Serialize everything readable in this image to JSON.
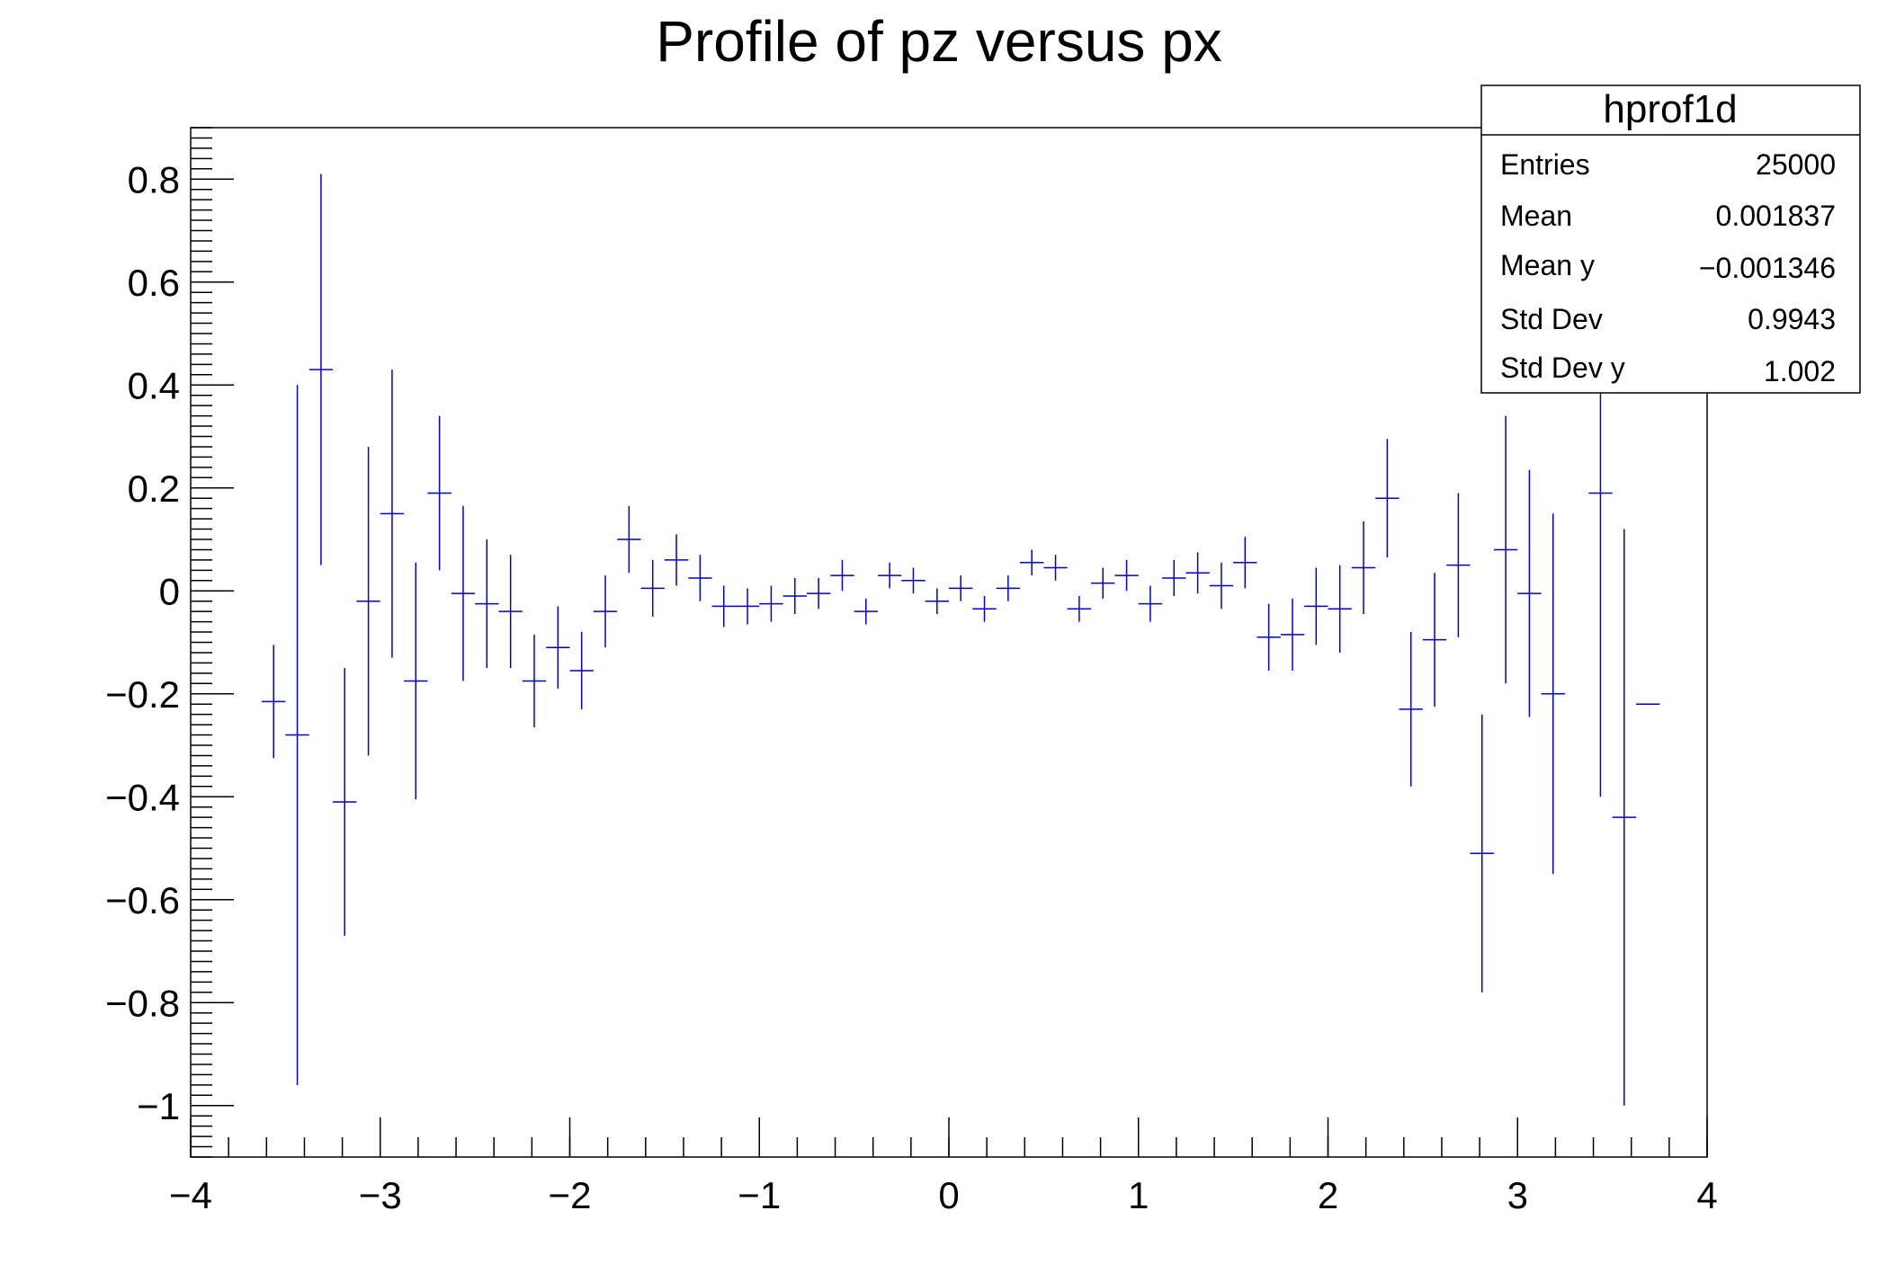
{
  "chart_data": {
    "type": "scatter",
    "title": "Profile of pz versus px",
    "xlabel": "",
    "ylabel": "",
    "xlim": [
      -4,
      4
    ],
    "ylim": [
      -1.1,
      0.9
    ],
    "x_ticks": [
      -4,
      -3,
      -2,
      -1,
      0,
      1,
      2,
      3,
      4
    ],
    "x_tick_labels": [
      "−4",
      "−3",
      "−2",
      "−1",
      "0",
      "1",
      "2",
      "3",
      "4"
    ],
    "y_ticks": [
      -1,
      -0.8,
      -0.6,
      -0.4,
      -0.2,
      0,
      0.2,
      0.4,
      0.6,
      0.8
    ],
    "y_tick_labels": [
      "−1",
      "−0.8",
      "−0.6",
      "−0.4",
      "−0.2",
      "0",
      "0.2",
      "0.4",
      "0.6",
      "0.8"
    ],
    "grid": false,
    "bin_width": 0.125,
    "series_color": "#0000cc",
    "points": [
      {
        "x": -3.5625,
        "y": -0.215,
        "err": 0.11
      },
      {
        "x": -3.4375,
        "y": -0.28,
        "err": 0.68
      },
      {
        "x": -3.3125,
        "y": 0.43,
        "err": 0.38
      },
      {
        "x": -3.1875,
        "y": -0.41,
        "err": 0.26
      },
      {
        "x": -3.0625,
        "y": -0.02,
        "err": 0.3
      },
      {
        "x": -2.9375,
        "y": 0.15,
        "err": 0.28
      },
      {
        "x": -2.8125,
        "y": -0.175,
        "err": 0.23
      },
      {
        "x": -2.6875,
        "y": 0.19,
        "err": 0.15
      },
      {
        "x": -2.5625,
        "y": -0.005,
        "err": 0.17
      },
      {
        "x": -2.4375,
        "y": -0.025,
        "err": 0.125
      },
      {
        "x": -2.3125,
        "y": -0.04,
        "err": 0.11
      },
      {
        "x": -2.1875,
        "y": -0.175,
        "err": 0.09
      },
      {
        "x": -2.0625,
        "y": -0.11,
        "err": 0.08
      },
      {
        "x": -1.9375,
        "y": -0.155,
        "err": 0.075
      },
      {
        "x": -1.8125,
        "y": -0.04,
        "err": 0.07
      },
      {
        "x": -1.6875,
        "y": 0.1,
        "err": 0.065
      },
      {
        "x": -1.5625,
        "y": 0.005,
        "err": 0.055
      },
      {
        "x": -1.4375,
        "y": 0.06,
        "err": 0.05
      },
      {
        "x": -1.3125,
        "y": 0.025,
        "err": 0.045
      },
      {
        "x": -1.1875,
        "y": -0.03,
        "err": 0.04
      },
      {
        "x": -1.0625,
        "y": -0.03,
        "err": 0.035
      },
      {
        "x": -0.9375,
        "y": -0.025,
        "err": 0.035
      },
      {
        "x": -0.8125,
        "y": -0.01,
        "err": 0.035
      },
      {
        "x": -0.6875,
        "y": -0.005,
        "err": 0.03
      },
      {
        "x": -0.5625,
        "y": 0.03,
        "err": 0.03
      },
      {
        "x": -0.4375,
        "y": -0.04,
        "err": 0.025
      },
      {
        "x": -0.3125,
        "y": 0.03,
        "err": 0.025
      },
      {
        "x": -0.1875,
        "y": 0.02,
        "err": 0.025
      },
      {
        "x": -0.0625,
        "y": -0.02,
        "err": 0.025
      },
      {
        "x": 0.0625,
        "y": 0.005,
        "err": 0.025
      },
      {
        "x": 0.1875,
        "y": -0.035,
        "err": 0.025
      },
      {
        "x": 0.3125,
        "y": 0.005,
        "err": 0.025
      },
      {
        "x": 0.4375,
        "y": 0.055,
        "err": 0.025
      },
      {
        "x": 0.5625,
        "y": 0.045,
        "err": 0.025
      },
      {
        "x": 0.6875,
        "y": -0.035,
        "err": 0.025
      },
      {
        "x": 0.8125,
        "y": 0.015,
        "err": 0.03
      },
      {
        "x": 0.9375,
        "y": 0.03,
        "err": 0.03
      },
      {
        "x": 1.0625,
        "y": -0.025,
        "err": 0.035
      },
      {
        "x": 1.1875,
        "y": 0.025,
        "err": 0.035
      },
      {
        "x": 1.3125,
        "y": 0.035,
        "err": 0.04
      },
      {
        "x": 1.4375,
        "y": 0.01,
        "err": 0.045
      },
      {
        "x": 1.5625,
        "y": 0.055,
        "err": 0.05
      },
      {
        "x": 1.6875,
        "y": -0.09,
        "err": 0.065
      },
      {
        "x": 1.8125,
        "y": -0.085,
        "err": 0.07
      },
      {
        "x": 1.9375,
        "y": -0.03,
        "err": 0.075
      },
      {
        "x": 2.0625,
        "y": -0.035,
        "err": 0.085
      },
      {
        "x": 2.1875,
        "y": 0.045,
        "err": 0.09
      },
      {
        "x": 2.3125,
        "y": 0.18,
        "err": 0.115
      },
      {
        "x": 2.4375,
        "y": -0.23,
        "err": 0.15
      },
      {
        "x": 2.5625,
        "y": -0.095,
        "err": 0.13
      },
      {
        "x": 2.6875,
        "y": 0.05,
        "err": 0.14
      },
      {
        "x": 2.8125,
        "y": -0.51,
        "err": 0.27
      },
      {
        "x": 2.9375,
        "y": 0.08,
        "err": 0.26
      },
      {
        "x": 3.0625,
        "y": -0.005,
        "err": 0.24
      },
      {
        "x": 3.1875,
        "y": -0.2,
        "err": 0.35
      },
      {
        "x": 3.4375,
        "y": 0.19,
        "err": 0.59
      },
      {
        "x": 3.5625,
        "y": -0.44,
        "err": 0.56
      },
      {
        "x": 3.6875,
        "y": -0.22,
        "err": 0
      }
    ]
  },
  "stats_box": {
    "title": "hprof1d",
    "rows": [
      {
        "label": "Entries",
        "value": "25000"
      },
      {
        "label": "Mean",
        "value": "0.001837"
      },
      {
        "label": "Mean y",
        "value": "−0.001346"
      },
      {
        "label": "Std Dev",
        "value": "0.9943"
      },
      {
        "label": "Std Dev y",
        "value": "1.002"
      }
    ]
  }
}
